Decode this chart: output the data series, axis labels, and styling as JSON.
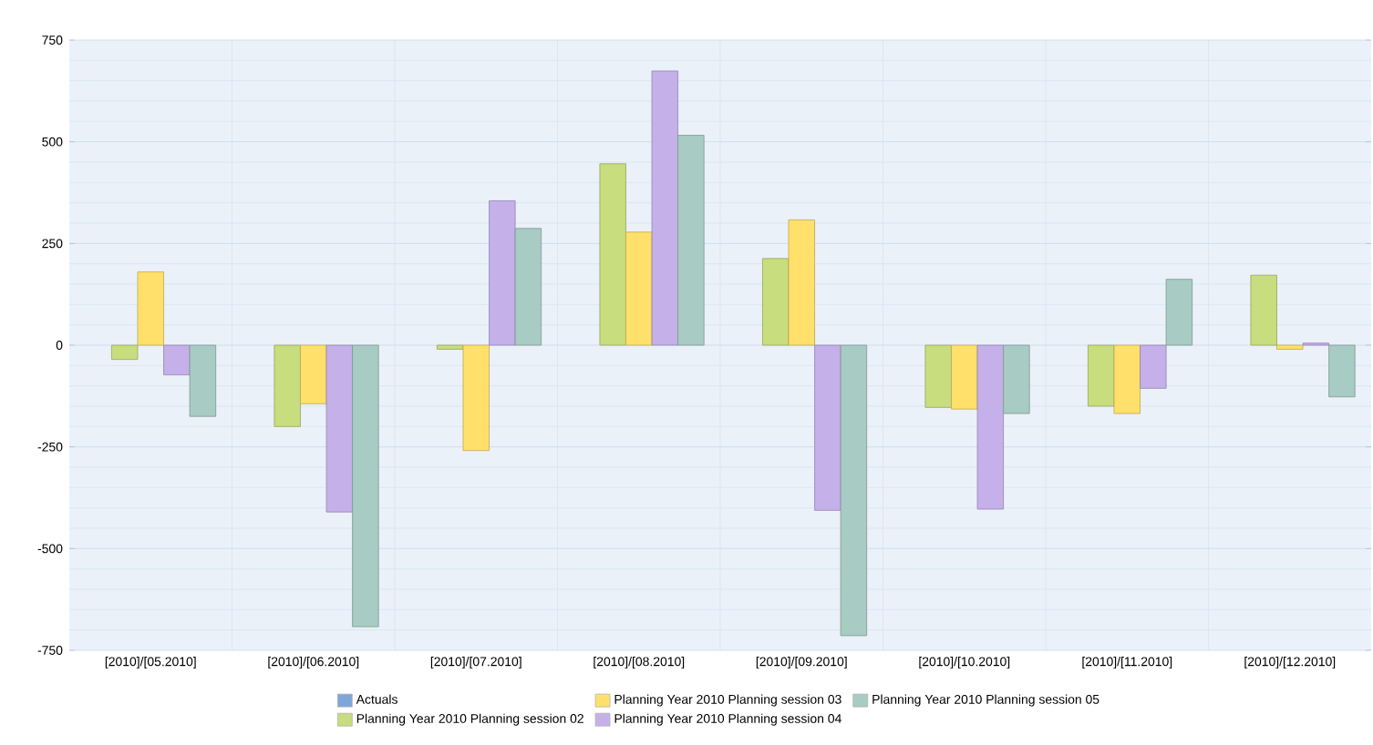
{
  "chart_data": {
    "type": "bar",
    "categories": [
      "[2010]/[05.2010]",
      "[2010]/[06.2010]",
      "[2010]/[07.2010]",
      "[2010]/[08.2010]",
      "[2010]/[09.2010]",
      "[2010]/[10.2010]",
      "[2010]/[11.2010]",
      "[2010]/[12.2010]"
    ],
    "series": [
      {
        "name": "Actuals",
        "color": "#7fa6d9",
        "values": [
          null,
          null,
          null,
          null,
          null,
          null,
          null,
          null
        ]
      },
      {
        "name": "Planning Year 2010 Planning session 02",
        "color": "#c8dd7e",
        "values": [
          -35,
          -200,
          -10,
          446,
          213,
          -153,
          -150,
          172
        ]
      },
      {
        "name": "Planning Year 2010 Planning session 03",
        "color": "#ffe06a",
        "values": [
          180,
          -144,
          -259,
          278,
          308,
          -157,
          -168,
          -10
        ]
      },
      {
        "name": "Planning Year 2010 Planning session 04",
        "color": "#c5b0ea",
        "values": [
          -73,
          -410,
          355,
          674,
          -406,
          -403,
          -106,
          5
        ]
      },
      {
        "name": "Planning Year 2010 Planning session 05",
        "color": "#a8cbc3",
        "values": [
          -175,
          -692,
          287,
          516,
          -714,
          -168,
          162,
          -127
        ]
      }
    ],
    "ylim": [
      -750,
      750
    ],
    "yticks": [
      -750,
      -500,
      -250,
      0,
      250,
      500,
      750
    ],
    "grid": true,
    "legend": "bottom"
  }
}
